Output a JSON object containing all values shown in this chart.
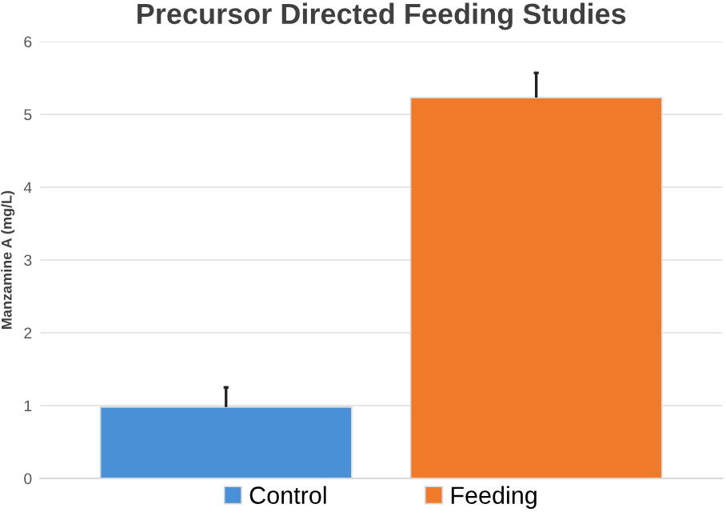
{
  "chart_data": {
    "type": "bar",
    "title": "Precursor Directed Feeding Studies",
    "ylabel": "Manzamine A (mg/L)",
    "categories": [
      null,
      null
    ],
    "series": [
      {
        "name": "Control",
        "color": "#4a90d6",
        "values": [
          0.98,
          null
        ],
        "errors": [
          [
            0.98,
            1.25
          ],
          null
        ]
      },
      {
        "name": "Feeding",
        "color": "#f07a2a",
        "values": [
          null,
          5.23
        ],
        "errors": [
          null,
          [
            5.23,
            5.57
          ]
        ]
      }
    ],
    "ylim": [
      0,
      6
    ],
    "yticks": [
      0,
      1,
      2,
      3,
      4,
      5,
      6
    ],
    "grid": "y",
    "legend": "bottom"
  }
}
